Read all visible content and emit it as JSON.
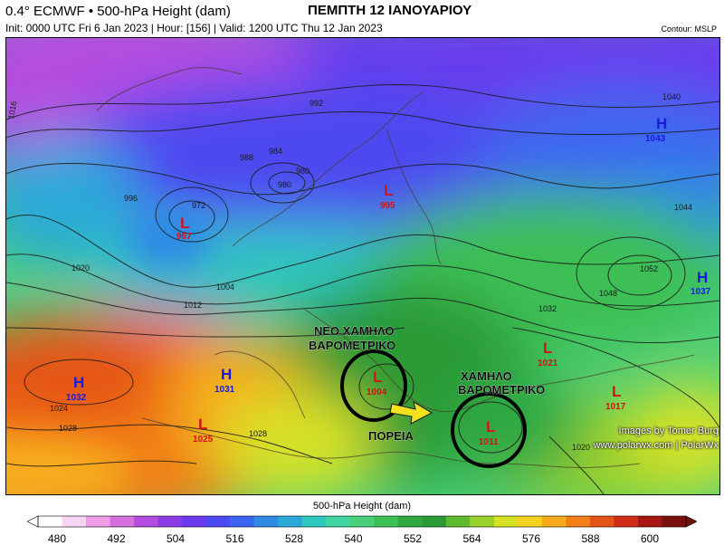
{
  "header": {
    "left_title": "0.4° ECMWF • 500-hPa Height (dam)",
    "center_title": "ΠΕΜΠΤΗ 12 ΙΑΝΟΥΑΡΙΟΥ",
    "subtitle": "Init: 0000 UTC Fri 6 Jan 2023 | Hour: [156] | Valid: 1200 UTC Thu 12 Jan 2023",
    "contour_note": "Contour: MSLP"
  },
  "annotations": {
    "new_low_line1": "ΝΕΟ ΧΑΜΗΛΟ",
    "new_low_line2": "ΒΑΡΟΜΕΤΡΙΚΟ",
    "low_line1": "ΧΑΜΗΛΟ",
    "low_line2": "ΒΑΡΟΜΕΤΡΙΚΟ",
    "track_label": "ΠΟΡΕΙΑ"
  },
  "pressure_centers": [
    {
      "type": "H",
      "value": "1043"
    },
    {
      "type": "H",
      "value": "1032"
    },
    {
      "type": "H",
      "value": "1031"
    },
    {
      "type": "H",
      "value": "1037"
    },
    {
      "type": "L",
      "value": "967"
    },
    {
      "type": "L",
      "value": "995"
    },
    {
      "type": "L",
      "value": "1004"
    },
    {
      "type": "L",
      "value": "1011"
    },
    {
      "type": "L",
      "value": "1025"
    },
    {
      "type": "L",
      "value": "1021"
    },
    {
      "type": "L",
      "value": "1017"
    }
  ],
  "isobar_labels": [
    "1016",
    "1020",
    "1024",
    "1028",
    "1012",
    "1004",
    "996",
    "988",
    "984",
    "980",
    "972",
    "1040",
    "1044",
    "1048",
    "1052",
    "1032",
    "1020",
    "1028",
    "992",
    "980"
  ],
  "credits": {
    "line1": "Images by Tomer Burg",
    "line2": "www.polarwx.com | PolarWx"
  },
  "colorbar": {
    "title": "500-hPa Height (dam)",
    "ticks": [
      "480",
      "492",
      "504",
      "516",
      "528",
      "540",
      "552",
      "564",
      "576",
      "588",
      "600"
    ],
    "colors": [
      "#ffffff",
      "#f6d6f4",
      "#ee9de8",
      "#d66fdd",
      "#b44ee0",
      "#8c3ce6",
      "#6a3aee",
      "#4d48f0",
      "#3c66f0",
      "#2f8ae6",
      "#2aa9d8",
      "#2fc7c0",
      "#3fd79f",
      "#4ad07a",
      "#3cbf55",
      "#2fa843",
      "#2c9a34",
      "#5fba2e",
      "#9bd12b",
      "#d7e225",
      "#f3d21f",
      "#f6ab1b",
      "#f27e19",
      "#e65418",
      "#cf2b16",
      "#a71612",
      "#7a0f0d"
    ]
  },
  "colors": {
    "high_label": "#1a1adc",
    "low_label": "#d21414",
    "circle": "#000000",
    "track_arrow": "#f2e11c"
  }
}
